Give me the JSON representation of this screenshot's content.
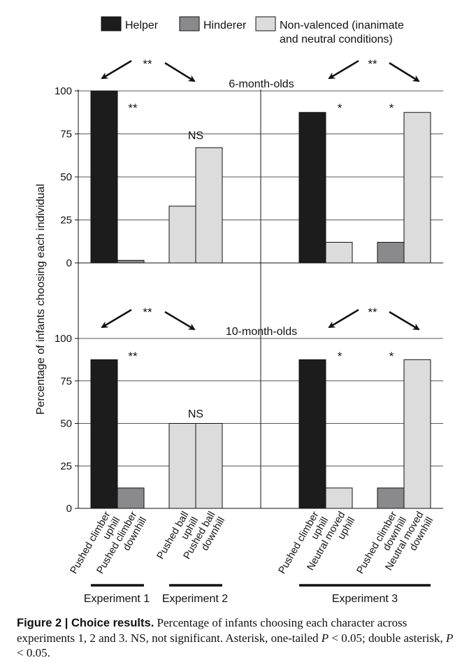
{
  "legend": [
    {
      "label": "Helper",
      "color": "#1c1c1c"
    },
    {
      "label": "Hinderer",
      "color": "#8a8a8c"
    },
    {
      "label": "Non-valenced (inanimate",
      "label2": "and neutral conditions)",
      "color": "#dcdcdc"
    }
  ],
  "colors": {
    "helper": "#1c1c1c",
    "hinderer": "#8a8a8c",
    "nonvalenced": "#dcdcdc"
  },
  "ylabel": "Percentage of infants choosing each individual",
  "chart_data": {
    "type": "bar",
    "ylim": [
      0,
      100
    ],
    "yticks": [
      0,
      25,
      50,
      75,
      100
    ],
    "categories": [
      "Pushed climber uphill",
      "Pushed climber downhill",
      "Pushed ball uphill",
      "Pushed ball downhill",
      "Pushed climber uphill",
      "Neutral moved uphill",
      "Pushed climber downhill",
      "Neutral moved downhill"
    ],
    "category_series": [
      "helper",
      "hinderer",
      "nonvalenced",
      "nonvalenced",
      "helper",
      "nonvalenced",
      "hinderer",
      "nonvalenced"
    ],
    "panels": [
      {
        "title": "6-month-olds",
        "values": [
          100,
          1.5,
          33,
          67,
          87.5,
          12,
          12,
          87.5
        ]
      },
      {
        "title": "10-month-olds",
        "values": [
          87.5,
          12,
          50,
          50,
          87.5,
          12,
          12,
          87.5
        ]
      }
    ],
    "experiments": [
      {
        "label": "Experiment 1",
        "bars": [
          0,
          1
        ]
      },
      {
        "label": "Experiment 2",
        "bars": [
          2,
          3
        ]
      },
      {
        "label": "Experiment 3",
        "bars": [
          4,
          5,
          6,
          7
        ]
      }
    ],
    "annotations": {
      "top_pair_stars": "**",
      "exp1_stars": "**",
      "exp2_ns": "NS",
      "exp3_star": "*"
    }
  },
  "caption": {
    "label": "Figure 2",
    "sep": " | ",
    "title": "Choice results.",
    "text1": " Percentage of infants choosing each character across experiments 1, 2 and 3. NS, not significant. Asterisk, one-tailed ",
    "p1": "P",
    "text2": " < 0.05; double asterisk, ",
    "p2": "P",
    "text3": " < 0.05."
  }
}
